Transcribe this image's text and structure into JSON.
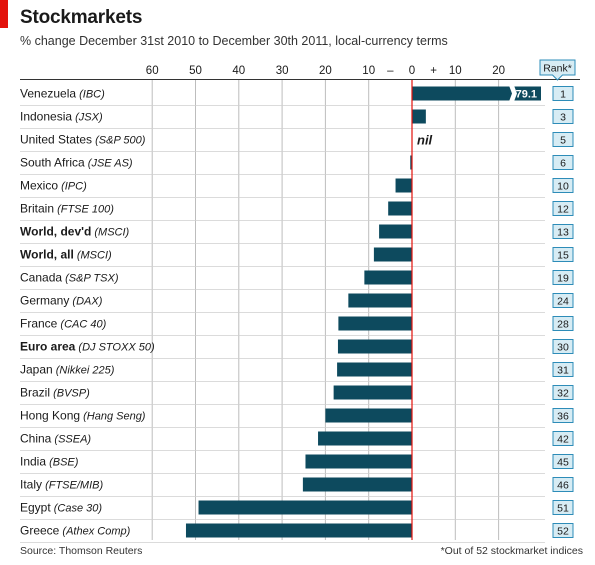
{
  "title": "Stockmarkets",
  "subtitle": "% change December 31st 2010 to December 30th 2011, local-currency terms",
  "source": "Source: Thomson Reuters",
  "footnote": "*Out of 52 stockmarket indices",
  "colors": {
    "bar": "#0d4a5e",
    "zero_line": "#e3120b",
    "rank_fill": "#d7ecf4",
    "rank_border": "#2d8cb8",
    "row_separator": "#cfcfcf",
    "accent_tab": "#e3120b"
  },
  "chart_data": {
    "type": "bar",
    "orientation": "horizontal",
    "x_ticks": [
      "60",
      "50",
      "40",
      "30",
      "20",
      "10",
      "–",
      "0",
      "+",
      "10",
      "20"
    ],
    "x_tick_values": [
      -60,
      -50,
      -40,
      -30,
      -20,
      -10,
      -5,
      0,
      5,
      10,
      20
    ],
    "xlim": [
      -65,
      26
    ],
    "grid": true,
    "rank_header": "Rank*",
    "break_label": "79.1",
    "nil_label": "nil",
    "rows": [
      {
        "name": "Venezuela",
        "index": "(IBC)",
        "bold": false,
        "value": 79.1,
        "rank": "1",
        "broken": true
      },
      {
        "name": "Indonesia",
        "index": "(JSX)",
        "bold": false,
        "value": 3.2,
        "rank": "3"
      },
      {
        "name": "United States",
        "index": "(S&P 500)",
        "bold": false,
        "value": 0.0,
        "rank": "5",
        "nil": true
      },
      {
        "name": "South Africa",
        "index": "(JSE AS)",
        "bold": false,
        "value": -0.4,
        "rank": "6"
      },
      {
        "name": "Mexico",
        "index": "(IPC)",
        "bold": false,
        "value": -3.8,
        "rank": "10"
      },
      {
        "name": "Britain",
        "index": "(FTSE 100)",
        "bold": false,
        "value": -5.5,
        "rank": "12"
      },
      {
        "name": "World, dev'd",
        "index": "(MSCI)",
        "bold": true,
        "value": -7.6,
        "rank": "13"
      },
      {
        "name": "World, all",
        "index": "(MSCI)",
        "bold": true,
        "value": -8.8,
        "rank": "15"
      },
      {
        "name": "Canada",
        "index": "(S&P TSX)",
        "bold": false,
        "value": -11.0,
        "rank": "19"
      },
      {
        "name": "Germany",
        "index": "(DAX)",
        "bold": false,
        "value": -14.7,
        "rank": "24"
      },
      {
        "name": "France",
        "index": "(CAC 40)",
        "bold": false,
        "value": -17.0,
        "rank": "28"
      },
      {
        "name": "Euro area",
        "index": "(DJ STOXX 50)",
        "bold": true,
        "value": -17.1,
        "rank": "30"
      },
      {
        "name": "Japan",
        "index": "(Nikkei 225)",
        "bold": false,
        "value": -17.3,
        "rank": "31"
      },
      {
        "name": "Brazil",
        "index": "(BVSP)",
        "bold": false,
        "value": -18.1,
        "rank": "32"
      },
      {
        "name": "Hong Kong",
        "index": "(Hang Seng)",
        "bold": false,
        "value": -20.0,
        "rank": "36"
      },
      {
        "name": "China",
        "index": "(SSEA)",
        "bold": false,
        "value": -21.7,
        "rank": "42"
      },
      {
        "name": "India",
        "index": "(BSE)",
        "bold": false,
        "value": -24.6,
        "rank": "45"
      },
      {
        "name": "Italy",
        "index": "(FTSE/MIB)",
        "bold": false,
        "value": -25.2,
        "rank": "46"
      },
      {
        "name": "Egypt",
        "index": "(Case 30)",
        "bold": false,
        "value": -49.3,
        "rank": "51"
      },
      {
        "name": "Greece",
        "index": "(Athex Comp)",
        "bold": false,
        "value": -52.2,
        "rank": "52"
      }
    ]
  }
}
